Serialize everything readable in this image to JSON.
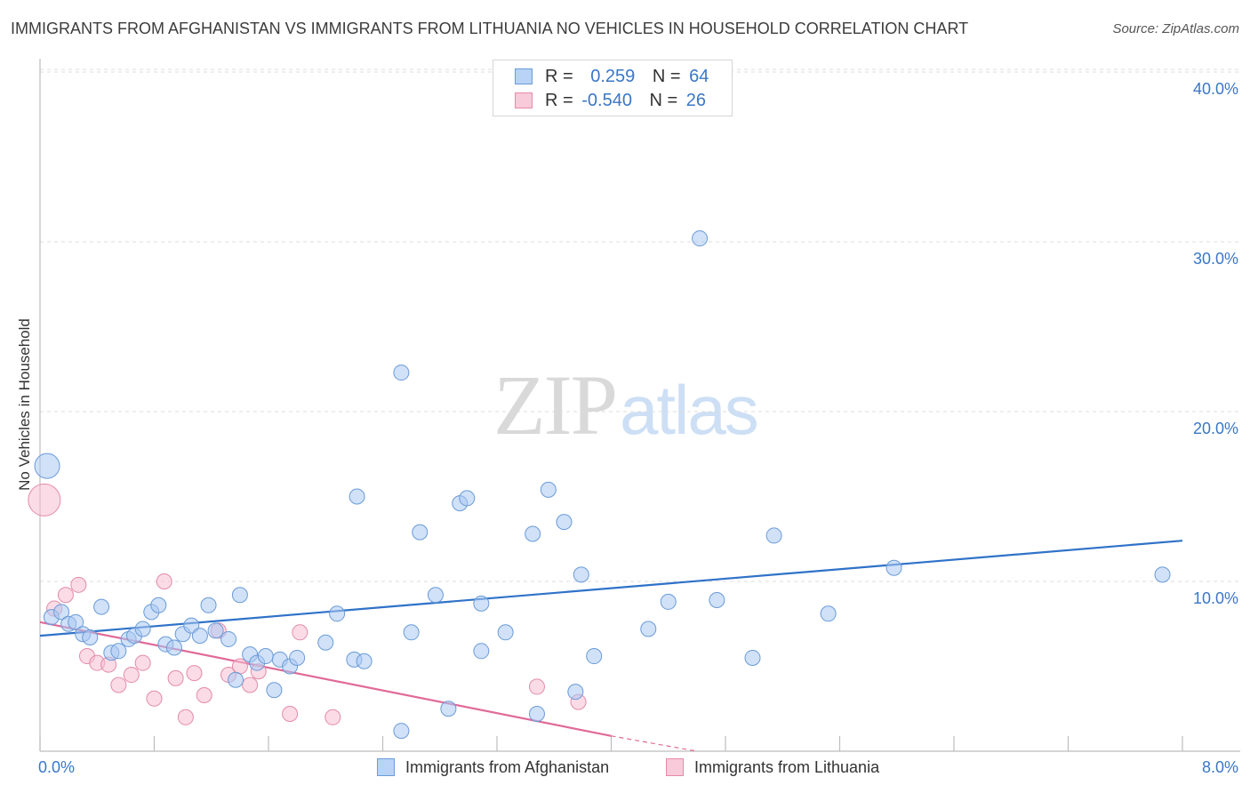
{
  "header": {
    "title": "IMMIGRANTS FROM AFGHANISTAN VS IMMIGRANTS FROM LITHUANIA NO VEHICLES IN HOUSEHOLD CORRELATION CHART",
    "source": "Source: ZipAtlas.com"
  },
  "watermark": {
    "zip": "ZIP",
    "atlas": "atlas"
  },
  "legend_stats": [
    {
      "r_label": "R =",
      "r_value": "0.259",
      "n_label": "N =",
      "n_value": "64"
    },
    {
      "r_label": "R =",
      "r_value": "-0.540",
      "n_label": "N =",
      "n_value": "26"
    }
  ],
  "colors": {
    "afghanistan_fill": "#a9c9f2",
    "afghanistan_stroke": "#6a9bd8",
    "afghanistan_line": "#2f72c8",
    "lithuania_fill": "#f7bfd2",
    "lithuania_stroke": "#e48aa9",
    "lithuania_line": "#e06a98",
    "tick_text": "#3a77c6",
    "grid": "#dcdcdc"
  },
  "chart_data": {
    "type": "scatter",
    "title": "IMMIGRANTS FROM AFGHANISTAN VS IMMIGRANTS FROM LITHUANIA NO VEHICLES IN HOUSEHOLD CORRELATION CHART",
    "xlabel": "",
    "ylabel": "No Vehicles in Household",
    "xlim": [
      0,
      8
    ],
    "ylim": [
      0,
      42
    ],
    "x_tick_labels": [
      "0.0%",
      "8.0%"
    ],
    "y_ticks": [
      10,
      20,
      30,
      40
    ],
    "y_tick_labels": [
      "10.0%",
      "20.0%",
      "30.0%",
      "40.0%"
    ],
    "grid": "horizontal dashed",
    "legend_position": "bottom",
    "series": [
      {
        "name": "Immigrants from Afghanistan",
        "trend": {
          "x": [
            0,
            8
          ],
          "y": [
            6.8,
            12.4
          ]
        },
        "points": [
          [
            0.05,
            16.8
          ],
          [
            0.08,
            7.9
          ],
          [
            0.15,
            8.2
          ],
          [
            0.2,
            7.5
          ],
          [
            0.25,
            7.6
          ],
          [
            0.3,
            6.9
          ],
          [
            0.35,
            6.7
          ],
          [
            0.43,
            8.5
          ],
          [
            0.5,
            5.8
          ],
          [
            0.55,
            5.9
          ],
          [
            0.62,
            6.6
          ],
          [
            0.66,
            6.8
          ],
          [
            0.72,
            7.2
          ],
          [
            0.78,
            8.2
          ],
          [
            0.83,
            8.6
          ],
          [
            0.88,
            6.3
          ],
          [
            0.94,
            6.1
          ],
          [
            1.0,
            6.9
          ],
          [
            1.06,
            7.4
          ],
          [
            1.12,
            6.8
          ],
          [
            1.18,
            8.6
          ],
          [
            1.23,
            7.1
          ],
          [
            1.32,
            6.6
          ],
          [
            1.37,
            4.2
          ],
          [
            1.4,
            9.2
          ],
          [
            1.47,
            5.7
          ],
          [
            1.52,
            5.2
          ],
          [
            1.58,
            5.6
          ],
          [
            1.64,
            3.6
          ],
          [
            1.68,
            5.4
          ],
          [
            1.75,
            5.0
          ],
          [
            1.8,
            5.5
          ],
          [
            2.0,
            6.4
          ],
          [
            2.08,
            8.1
          ],
          [
            2.2,
            5.4
          ],
          [
            2.22,
            15.0
          ],
          [
            2.27,
            5.3
          ],
          [
            2.53,
            1.2
          ],
          [
            2.53,
            22.3
          ],
          [
            2.6,
            7.0
          ],
          [
            2.66,
            12.9
          ],
          [
            2.77,
            9.2
          ],
          [
            2.86,
            2.5
          ],
          [
            2.94,
            14.6
          ],
          [
            2.99,
            14.9
          ],
          [
            3.09,
            8.7
          ],
          [
            3.09,
            5.9
          ],
          [
            3.26,
            7.0
          ],
          [
            3.45,
            12.8
          ],
          [
            3.48,
            2.2
          ],
          [
            3.56,
            15.4
          ],
          [
            3.67,
            13.5
          ],
          [
            3.75,
            3.5
          ],
          [
            3.79,
            10.4
          ],
          [
            3.88,
            5.6
          ],
          [
            4.26,
            7.2
          ],
          [
            4.4,
            8.8
          ],
          [
            4.62,
            30.2
          ],
          [
            4.74,
            8.9
          ],
          [
            4.99,
            5.5
          ],
          [
            5.14,
            12.7
          ],
          [
            5.52,
            8.1
          ],
          [
            5.98,
            10.8
          ],
          [
            7.86,
            10.4
          ]
        ]
      },
      {
        "name": "Immigrants from Lithuania",
        "trend": {
          "x": [
            0,
            4.0
          ],
          "y": [
            7.6,
            0.9
          ]
        },
        "trend_dashed": {
          "x": [
            4.0,
            4.6
          ],
          "y": [
            0.9,
            0.0
          ]
        },
        "points": [
          [
            0.03,
            14.8
          ],
          [
            0.1,
            8.4
          ],
          [
            0.18,
            9.2
          ],
          [
            0.27,
            9.8
          ],
          [
            0.33,
            5.6
          ],
          [
            0.4,
            5.2
          ],
          [
            0.48,
            5.1
          ],
          [
            0.55,
            3.9
          ],
          [
            0.64,
            4.5
          ],
          [
            0.72,
            5.2
          ],
          [
            0.8,
            3.1
          ],
          [
            0.87,
            10.0
          ],
          [
            0.95,
            4.3
          ],
          [
            1.02,
            2.0
          ],
          [
            1.08,
            4.6
          ],
          [
            1.15,
            3.3
          ],
          [
            1.25,
            7.1
          ],
          [
            1.32,
            4.5
          ],
          [
            1.4,
            5.0
          ],
          [
            1.47,
            3.9
          ],
          [
            1.53,
            4.7
          ],
          [
            1.75,
            2.2
          ],
          [
            1.82,
            7.0
          ],
          [
            2.05,
            2.0
          ],
          [
            3.48,
            3.8
          ],
          [
            3.77,
            2.9
          ]
        ]
      }
    ]
  },
  "bottom_legend": [
    "Immigrants from Afghanistan",
    "Immigrants from Lithuania"
  ]
}
